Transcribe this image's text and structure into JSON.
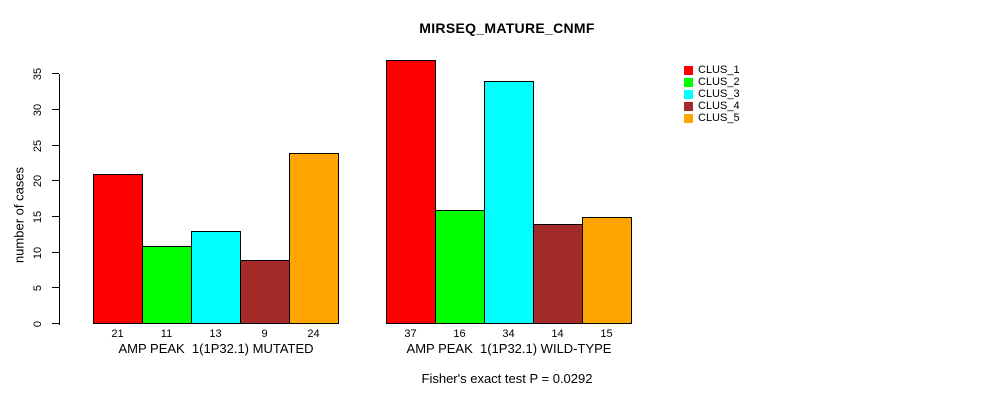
{
  "title": "MIRSEQ_MATURE_CNMF",
  "chart_data": {
    "type": "bar",
    "title": "MIRSEQ_MATURE_CNMF",
    "ylabel": "number of cases",
    "xlabel": "",
    "ylim": [
      0,
      37
    ],
    "yticks": [
      0,
      5,
      10,
      15,
      20,
      25,
      30,
      35
    ],
    "grid": false,
    "legend_position": "top-right",
    "y_tick_labels_rotated": true,
    "bar_value_labels_shown": true,
    "categories": [
      "AMP PEAK  1(1P32.1) MUTATED",
      "AMP PEAK  1(1P32.1) WILD-TYPE"
    ],
    "series": [
      {
        "name": "CLUS_1",
        "color": "#ff0000",
        "values": [
          21,
          37
        ]
      },
      {
        "name": "CLUS_2",
        "color": "#00ff00",
        "values": [
          11,
          16
        ]
      },
      {
        "name": "CLUS_3",
        "color": "#00ffff",
        "values": [
          13,
          34
        ]
      },
      {
        "name": "CLUS_4",
        "color": "#a52a2a",
        "values": [
          9,
          14
        ]
      },
      {
        "name": "CLUS_5",
        "color": "#ffa500",
        "values": [
          24,
          15
        ]
      }
    ],
    "footer": "Fisher's exact test P = 0.0292",
    "axis_color": "#000000",
    "background_color": "#ffffff"
  }
}
